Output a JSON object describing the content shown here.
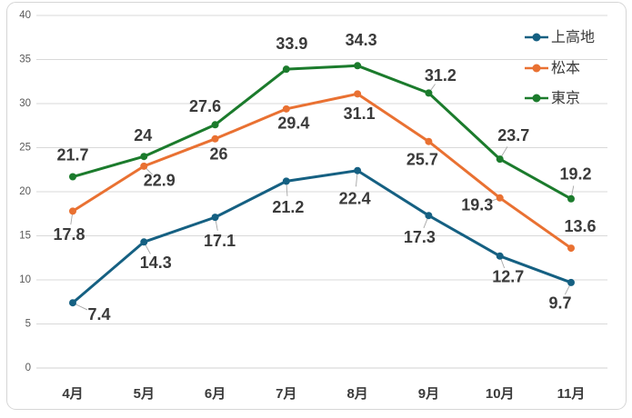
{
  "chart_data": {
    "type": "line",
    "title": "",
    "xlabel": "",
    "ylabel": "",
    "categories": [
      "4月",
      "5月",
      "6月",
      "7月",
      "8月",
      "9月",
      "10月",
      "11月"
    ],
    "series": [
      {
        "name": "上高地",
        "color": "#156082",
        "values": [
          7.4,
          14.3,
          17.1,
          21.2,
          22.4,
          17.3,
          12.7,
          9.7
        ],
        "labels": [
          "7.4",
          "14.3",
          "17.1",
          "21.2",
          "22.4",
          "17.3",
          "12.7",
          "9.7"
        ],
        "label_dx": [
          29,
          13,
          5,
          2,
          -3,
          -10,
          9,
          -12
        ],
        "label_dy": [
          14,
          24,
          27,
          30,
          32,
          25,
          24,
          24
        ],
        "leader": [
          true,
          true,
          true,
          true,
          true,
          true,
          true,
          true
        ]
      },
      {
        "name": "松本",
        "color": "#E97132",
        "values": [
          17.8,
          22.9,
          26,
          29.4,
          31.1,
          25.7,
          19.3,
          13.6
        ],
        "labels": [
          "17.8",
          "22.9",
          "26",
          "29.4",
          "31.1",
          "25.7",
          "19.3",
          "13.6"
        ],
        "label_dx": [
          -4,
          17,
          4,
          8,
          2,
          -7,
          -25,
          10
        ],
        "label_dy": [
          27,
          17,
          18,
          17,
          23,
          21,
          9,
          -23
        ],
        "leader": [
          true,
          true,
          false,
          false,
          false,
          false,
          true,
          false
        ]
      },
      {
        "name": "東京",
        "color": "#1B7B2C",
        "values": [
          21.7,
          24,
          27.6,
          33.9,
          34.3,
          31.2,
          23.7,
          19.2
        ],
        "labels": [
          "21.7",
          "24",
          "27.6",
          "33.9",
          "34.3",
          "31.2",
          "23.7",
          "19.2"
        ],
        "label_dx": [
          0,
          -1,
          -11,
          6,
          4,
          13,
          15,
          5
        ],
        "label_dy": [
          -23,
          -22,
          -19,
          -27,
          -27,
          -18,
          -25,
          -26
        ],
        "leader": [
          false,
          false,
          false,
          false,
          false,
          true,
          true,
          true
        ]
      }
    ],
    "ylim": [
      0,
      40
    ],
    "ytick_step": 5,
    "ytick_labels": [
      "0",
      "5",
      "10",
      "15",
      "20",
      "25",
      "30",
      "35",
      "40"
    ],
    "grid": true,
    "legend_position": "top-right"
  },
  "style": {
    "grid_color": "#D9D9D9",
    "axis_line_color": "#D2D2D2",
    "ytick_text_color": "#595959",
    "xtick_text_color": "#3A3A3A",
    "data_label_color": "#3A3A3A",
    "legend_text_color": "#3A3A3A",
    "leader_line_color": "#A6A6A6",
    "frame_border_color": "#D6D6D6",
    "background": "#FFFFFF"
  }
}
